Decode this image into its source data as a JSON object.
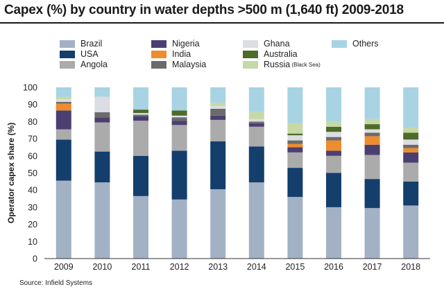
{
  "title": "Capex (%) by country in water depths >500 m (1,640 ft) 2009-2018",
  "source": "Source: Infield Systems",
  "chart_data": {
    "type": "bar",
    "stacked": true,
    "title": "Capex (%) by country in water depths >500 m (1,640 ft) 2009-2018",
    "xlabel": "",
    "ylabel": "Operator capex share (%)",
    "ylim": [
      0,
      100
    ],
    "yticks": [
      0,
      10,
      20,
      30,
      40,
      50,
      60,
      70,
      80,
      90,
      100
    ],
    "categories": [
      "2009",
      "2010",
      "2011",
      "2012",
      "2013",
      "2014",
      "2015",
      "2016",
      "2017",
      "2018"
    ],
    "series": [
      {
        "name": "Brazil",
        "color": "#a3b1c5",
        "values": [
          45.5,
          44.5,
          36.5,
          34.5,
          40.5,
          44.5,
          36,
          30,
          29.5,
          31
        ]
      },
      {
        "name": "USA",
        "color": "#143e6b",
        "values": [
          24,
          18,
          23.5,
          28.5,
          28,
          21,
          17,
          20,
          17,
          14
        ]
      },
      {
        "name": "Angola",
        "color": "#ababab",
        "values": [
          6,
          17,
          20.5,
          15,
          12.5,
          11.5,
          9,
          10,
          14,
          11
        ]
      },
      {
        "name": "Nigeria",
        "color": "#4b3f72",
        "values": [
          11,
          3,
          2.5,
          2.5,
          2.5,
          2,
          3,
          3,
          6,
          6
        ]
      },
      {
        "name": "India",
        "color": "#ee8c2e",
        "values": [
          4,
          0,
          0,
          0,
          0,
          0,
          2,
          6,
          5,
          2.5
        ]
      },
      {
        "name": "Malaysia",
        "color": "#6b6b6b",
        "values": [
          1,
          3,
          1,
          2,
          4,
          1,
          2,
          2,
          2,
          2
        ]
      },
      {
        "name": "Ghana",
        "color": "#dcdde3",
        "values": [
          1.5,
          9,
          1,
          1,
          1.5,
          1.5,
          3,
          3,
          2,
          3
        ]
      },
      {
        "name": "Australia",
        "color": "#4e6b2a",
        "values": [
          0,
          0,
          2,
          3,
          0,
          0,
          1,
          3,
          3,
          4
        ]
      },
      {
        "name": "Russia",
        "color": "#c6d8a6",
        "values": [
          1.5,
          0,
          0,
          0,
          2,
          4,
          6,
          3,
          3,
          3
        ]
      },
      {
        "name": "Others",
        "color": "#a8d3e3",
        "values": [
          5.5,
          5.5,
          13,
          13.5,
          9,
          14.5,
          21,
          20,
          18.5,
          23.5
        ]
      }
    ],
    "legend": {
      "position": "top",
      "entries": [
        {
          "label": "Brazil",
          "color": "#a3b1c5",
          "note": ""
        },
        {
          "label": "Nigeria",
          "color": "#4b3f72",
          "note": ""
        },
        {
          "label": "Ghana",
          "color": "#dcdde3",
          "note": ""
        },
        {
          "label": "Others",
          "color": "#a8d3e3",
          "note": ""
        },
        {
          "label": "USA",
          "color": "#143e6b",
          "note": ""
        },
        {
          "label": "India",
          "color": "#ee8c2e",
          "note": ""
        },
        {
          "label": "Australia",
          "color": "#4e6b2a",
          "note": ""
        },
        {
          "label": "Angola",
          "color": "#ababab",
          "note": ""
        },
        {
          "label": "Malaysia",
          "color": "#6b6b6b",
          "note": ""
        },
        {
          "label": "Russia",
          "color": "#c6d8a6",
          "note": "(Black Sea)"
        }
      ]
    }
  }
}
